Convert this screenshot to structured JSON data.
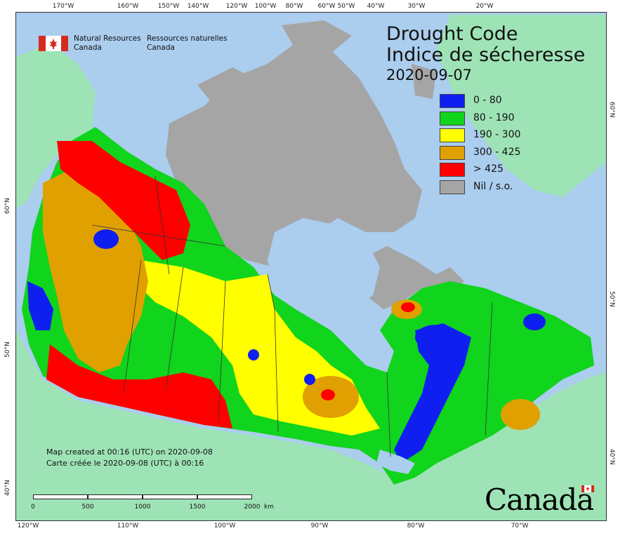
{
  "map": {
    "title_en": "Drought Code",
    "title_fr": "Indice de sécheresse",
    "date": "2020-09-07",
    "agency_en_line1": "Natural Resources",
    "agency_en_line2": "Canada",
    "agency_fr_line1": "Ressources naturelles",
    "agency_fr_line2": "Canada",
    "credit_en": "Map created at 00:16 (UTC) on 2020-09-08",
    "credit_fr": "Carte créée le 2020-09-08 (UTC) à 00:16",
    "wordmark": "Canada",
    "colors": {
      "ocean": "#abcdee",
      "foreign_land": "#9ee3b6",
      "nil": "#a5a5a5",
      "class_0_80": "#0f1ff0",
      "class_80_190": "#11d41c",
      "class_190_300": "#ffff00",
      "class_300_425": "#e0a000",
      "class_425_plus": "#ff0000"
    }
  },
  "legend": [
    {
      "label": "0 - 80",
      "color": "#0f1ff0"
    },
    {
      "label": "80 - 190",
      "color": "#11d41c"
    },
    {
      "label": "190 - 300",
      "color": "#ffff00"
    },
    {
      "label": "300 - 425",
      "color": "#e0a000"
    },
    {
      "label": "> 425",
      "color": "#ff0000"
    },
    {
      "label": "Nil / s.o.",
      "color": "#a5a5a5"
    }
  ],
  "graticule": {
    "top": [
      "170°W",
      "160°W",
      "150°W",
      "140°W",
      "120°W",
      "100°W",
      "80°W",
      "60°W",
      "50°W",
      "40°W",
      "30°W",
      "20°W"
    ],
    "bottom": [
      "120°W",
      "110°W",
      "100°W",
      "90°W",
      "80°W",
      "70°W"
    ],
    "left": [
      "60°N",
      "50°N",
      "40°N"
    ],
    "right": [
      "60°N",
      "50°N",
      "40°N"
    ]
  },
  "scale": {
    "labels": [
      "0",
      "500",
      "1000",
      "1500",
      "2000"
    ],
    "unit": "km"
  }
}
